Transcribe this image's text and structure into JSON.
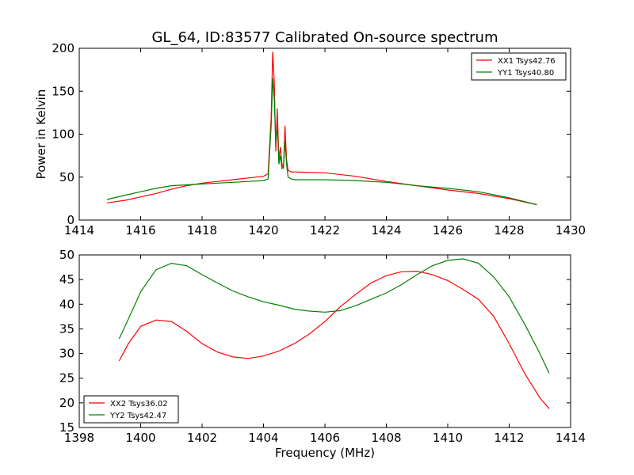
{
  "title": "GL_64, ID:83577 Calibrated On-source spectrum",
  "colors": {
    "red": "#ff0000",
    "green": "#008000"
  },
  "chart_data": [
    {
      "type": "line",
      "xlim": [
        1414,
        1430
      ],
      "ylim": [
        0,
        200
      ],
      "xticks": [
        "1414",
        "1416",
        "1418",
        "1420",
        "1422",
        "1424",
        "1426",
        "1428",
        "1430"
      ],
      "yticks": [
        "0",
        "50",
        "100",
        "150",
        "200"
      ],
      "xlabel": "",
      "ylabel": "Power in Kelvin",
      "grid": false,
      "legend_position": "top-right",
      "series": [
        {
          "name": "XX1 Tsys42.76",
          "color": "#ff0000",
          "points": [
            [
              1414.9,
              20
            ],
            [
              1415.5,
              23
            ],
            [
              1416,
              27
            ],
            [
              1416.5,
              31
            ],
            [
              1417,
              36
            ],
            [
              1417.5,
              40
            ],
            [
              1418,
              43
            ],
            [
              1418.5,
              45
            ],
            [
              1419,
              47
            ],
            [
              1419.5,
              49
            ],
            [
              1420,
              51
            ],
            [
              1420.15,
              54
            ],
            [
              1420.25,
              120
            ],
            [
              1420.3,
              196
            ],
            [
              1420.35,
              160
            ],
            [
              1420.4,
              80
            ],
            [
              1420.45,
              130
            ],
            [
              1420.5,
              70
            ],
            [
              1420.55,
              85
            ],
            [
              1420.6,
              66
            ],
            [
              1420.65,
              60
            ],
            [
              1420.7,
              110
            ],
            [
              1420.75,
              70
            ],
            [
              1420.8,
              58
            ],
            [
              1420.9,
              56
            ],
            [
              1421,
              56
            ],
            [
              1422,
              55
            ],
            [
              1423,
              51
            ],
            [
              1424,
              45
            ],
            [
              1425,
              40
            ],
            [
              1426,
              35
            ],
            [
              1427,
              31
            ],
            [
              1428,
              25
            ],
            [
              1428.9,
              18
            ]
          ]
        },
        {
          "name": "YY1 Tsys40.80",
          "color": "#008000",
          "points": [
            [
              1414.9,
              24
            ],
            [
              1415.5,
              29
            ],
            [
              1416,
              33
            ],
            [
              1416.5,
              37
            ],
            [
              1417,
              40
            ],
            [
              1417.5,
              41
            ],
            [
              1418,
              42
            ],
            [
              1418.5,
              43
            ],
            [
              1419,
              44
            ],
            [
              1419.5,
              45
            ],
            [
              1420,
              46
            ],
            [
              1420.15,
              48
            ],
            [
              1420.25,
              110
            ],
            [
              1420.3,
              165
            ],
            [
              1420.35,
              140
            ],
            [
              1420.4,
              90
            ],
            [
              1420.45,
              110
            ],
            [
              1420.5,
              65
            ],
            [
              1420.55,
              75
            ],
            [
              1420.6,
              60
            ],
            [
              1420.65,
              62
            ],
            [
              1420.7,
              92
            ],
            [
              1420.75,
              65
            ],
            [
              1420.8,
              50
            ],
            [
              1420.9,
              48
            ],
            [
              1421,
              47
            ],
            [
              1422,
              47
            ],
            [
              1423,
              46
            ],
            [
              1424,
              44
            ],
            [
              1425,
              40
            ],
            [
              1426,
              37
            ],
            [
              1427,
              33
            ],
            [
              1428,
              26
            ],
            [
              1428.9,
              18
            ]
          ]
        }
      ]
    },
    {
      "type": "line",
      "xlim": [
        1398,
        1414
      ],
      "ylim": [
        15,
        50
      ],
      "xticks": [
        "1398",
        "1400",
        "1402",
        "1404",
        "1406",
        "1408",
        "1410",
        "1412",
        "1414"
      ],
      "yticks": [
        "15",
        "20",
        "25",
        "30",
        "35",
        "40",
        "45",
        "50"
      ],
      "xlabel": "Frequency (MHz)",
      "ylabel": "",
      "grid": false,
      "legend_position": "bottom-left",
      "series": [
        {
          "name": "XX2 Tsys36.02",
          "color": "#ff0000",
          "points": [
            [
              1399.3,
              28.5
            ],
            [
              1399.6,
              32
            ],
            [
              1400,
              35.5
            ],
            [
              1400.5,
              36.8
            ],
            [
              1401,
              36.5
            ],
            [
              1401.5,
              34.5
            ],
            [
              1402,
              32
            ],
            [
              1402.5,
              30.3
            ],
            [
              1403,
              29.3
            ],
            [
              1403.5,
              29
            ],
            [
              1404,
              29.5
            ],
            [
              1404.5,
              30.5
            ],
            [
              1405,
              32
            ],
            [
              1405.5,
              34
            ],
            [
              1406,
              36.5
            ],
            [
              1406.5,
              39.5
            ],
            [
              1407,
              42
            ],
            [
              1407.5,
              44.3
            ],
            [
              1408,
              45.8
            ],
            [
              1408.5,
              46.6
            ],
            [
              1409,
              46.7
            ],
            [
              1409.5,
              46
            ],
            [
              1410,
              44.8
            ],
            [
              1410.5,
              43
            ],
            [
              1411,
              41
            ],
            [
              1411.5,
              37.5
            ],
            [
              1412,
              32
            ],
            [
              1412.5,
              26
            ],
            [
              1413,
              21
            ],
            [
              1413.3,
              18.8
            ]
          ]
        },
        {
          "name": "YY2 Tsys42.47",
          "color": "#008000",
          "points": [
            [
              1399.3,
              33
            ],
            [
              1399.6,
              37
            ],
            [
              1400,
              42.5
            ],
            [
              1400.5,
              47
            ],
            [
              1401,
              48.3
            ],
            [
              1401.5,
              47.8
            ],
            [
              1402,
              46
            ],
            [
              1402.5,
              44.3
            ],
            [
              1403,
              42.7
            ],
            [
              1403.5,
              41.5
            ],
            [
              1404,
              40.5
            ],
            [
              1404.5,
              39.8
            ],
            [
              1405,
              39
            ],
            [
              1405.5,
              38.6
            ],
            [
              1406,
              38.4
            ],
            [
              1406.5,
              38.7
            ],
            [
              1407,
              39.7
            ],
            [
              1407.5,
              41
            ],
            [
              1408,
              42.3
            ],
            [
              1408.5,
              44
            ],
            [
              1409,
              46
            ],
            [
              1409.5,
              47.8
            ],
            [
              1410,
              48.9
            ],
            [
              1410.5,
              49.2
            ],
            [
              1411,
              48.3
            ],
            [
              1411.5,
              45.5
            ],
            [
              1412,
              41.5
            ],
            [
              1412.5,
              36
            ],
            [
              1413,
              30
            ],
            [
              1413.3,
              26
            ]
          ]
        }
      ]
    }
  ]
}
